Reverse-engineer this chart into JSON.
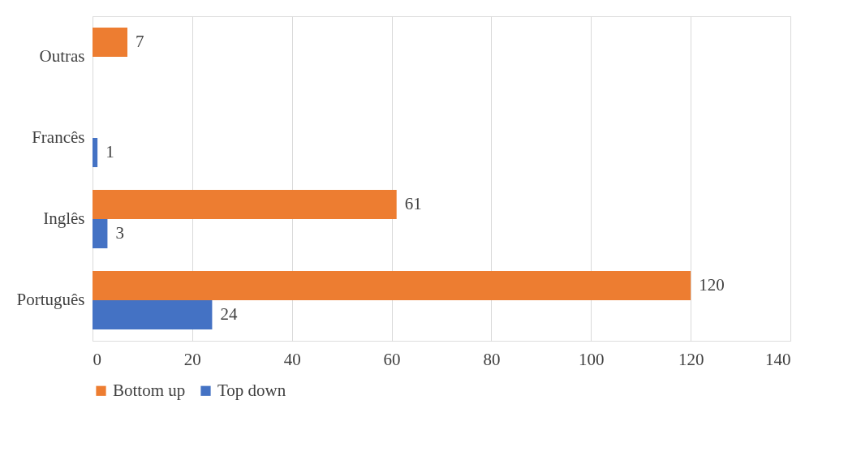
{
  "chart_data": {
    "type": "bar",
    "orientation": "horizontal",
    "categories": [
      "Outras",
      "Francês",
      "Inglês",
      "Português"
    ],
    "series": [
      {
        "name": "Bottom up",
        "color": "#ed7d31",
        "values": [
          7,
          null,
          61,
          120
        ]
      },
      {
        "name": "Top down",
        "color": "#4472c4",
        "values": [
          null,
          1,
          3,
          24
        ]
      }
    ],
    "xlim": [
      0,
      140
    ],
    "xticks": [
      0,
      20,
      40,
      60,
      80,
      100,
      120,
      140
    ],
    "grid": "x",
    "legend": "bottom",
    "data_labels": true
  }
}
